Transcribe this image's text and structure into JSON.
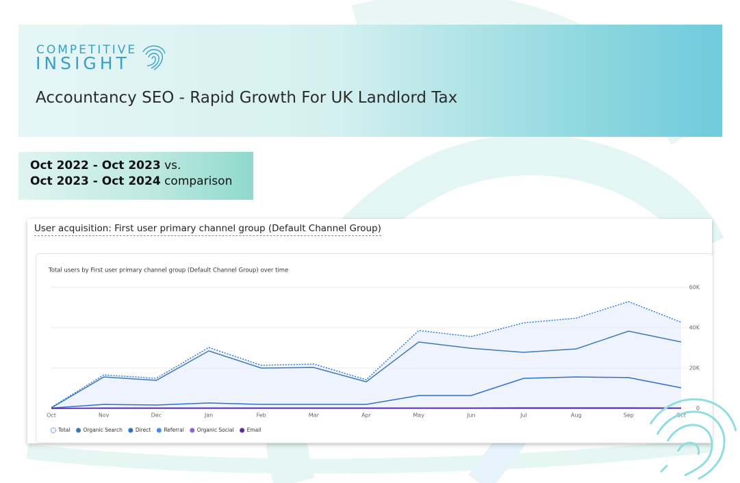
{
  "logo": {
    "top": "COMPETITIVE",
    "bottom": "INSIGHT"
  },
  "header": {
    "title": "Accountancy SEO - Rapid Growth For UK Landlord Tax"
  },
  "comparison": {
    "line1_bold": "Oct 2022 - Oct 2023",
    "line1_rest": "vs.",
    "line2_bold": "Oct 2023 - Oct 2024",
    "line2_rest": "comparison"
  },
  "card_title": "User acquisition: First user primary channel group (Default Channel Group)",
  "chart_data": {
    "type": "line",
    "title": "Total users by First user primary channel group (Default Channel Group) over time",
    "categories": [
      "Oct",
      "Nov",
      "Dec",
      "Jan",
      "Feb",
      "Mar",
      "Apr",
      "May",
      "Jun",
      "Jul",
      "Aug",
      "Sep",
      "Oct"
    ],
    "ylim": [
      0,
      60000
    ],
    "yticks": [
      0,
      {
        "value": 20000,
        "label": "20K"
      },
      {
        "value": 40000,
        "label": "40K"
      },
      {
        "value": 60000,
        "label": "60K"
      }
    ],
    "grid": true,
    "series": [
      {
        "name": "Total",
        "color": "#1a73e8",
        "values": [
          500,
          16600,
          14900,
          30200,
          21400,
          22000,
          14200,
          38600,
          35600,
          42400,
          44700,
          52900,
          42700
        ]
      },
      {
        "name": "Organic Search",
        "color": "#3b78b8",
        "values": [
          300,
          15600,
          13900,
          28500,
          20000,
          20300,
          13200,
          32900,
          29800,
          27800,
          29500,
          38300,
          32900
        ]
      },
      {
        "name": "Direct",
        "color": "#2c6fd1",
        "values": [
          200,
          2000,
          1700,
          2700,
          2000,
          2000,
          2000,
          6400,
          6400,
          14900,
          15600,
          15300,
          10200
        ]
      },
      {
        "name": "Referral",
        "color": "#4a8af0",
        "values": [
          0,
          300,
          300,
          300,
          300,
          300,
          300,
          300,
          300,
          400,
          400,
          400,
          300
        ]
      },
      {
        "name": "Organic Social",
        "color": "#8e5fd6",
        "values": [
          0,
          100,
          100,
          100,
          100,
          100,
          100,
          100,
          100,
          100,
          100,
          100,
          100
        ]
      },
      {
        "name": "Email",
        "color": "#5b2a9e",
        "values": [
          0,
          50,
          50,
          50,
          50,
          50,
          50,
          50,
          50,
          50,
          50,
          50,
          50
        ]
      }
    ]
  }
}
